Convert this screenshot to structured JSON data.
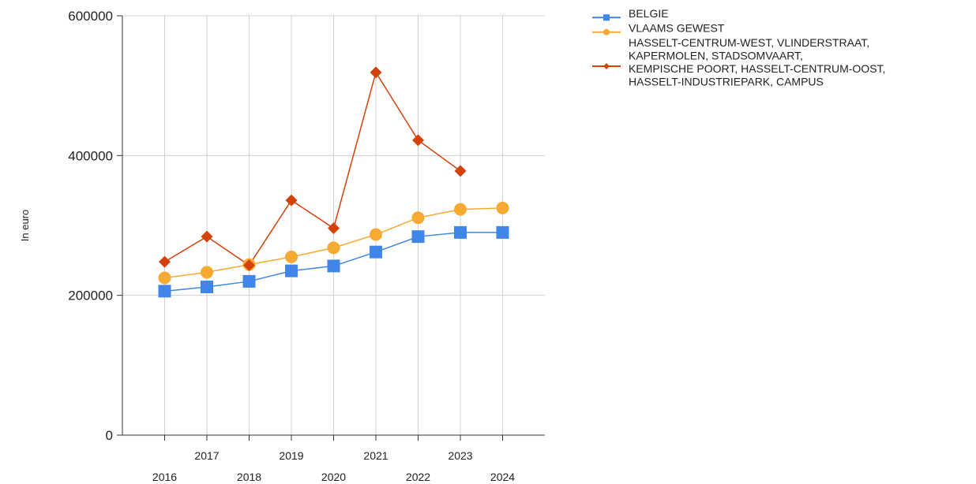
{
  "chart_data": {
    "type": "line",
    "title": "",
    "xlabel": "",
    "ylabel": "In euro",
    "ylim": [
      0,
      600000
    ],
    "yticks": [
      0,
      200000,
      400000,
      600000
    ],
    "categories": [
      "2016",
      "2017",
      "2018",
      "2019",
      "2020",
      "2021",
      "2022",
      "2023",
      "2024"
    ],
    "grid": true,
    "legend_position": "top-right",
    "series": [
      {
        "name": "BELGIE",
        "color": "#3f86e8",
        "marker": "square",
        "values": [
          206000,
          212000,
          220000,
          235000,
          242000,
          262000,
          284000,
          290000,
          290000
        ]
      },
      {
        "name": "VLAAMS GEWEST",
        "color": "#f7aa32",
        "marker": "circle",
        "values": [
          225000,
          233000,
          244000,
          255000,
          268000,
          287000,
          311000,
          323000,
          325000
        ]
      },
      {
        "name": "HASSELT-CENTRUM-WEST, VLINDERSTRAAT, KAPERMOLEN, STADSOMVAART, KEMPISCHE POORT, HASSELT-CENTRUM-OOST, HASSELT-INDUSTRIEPARK, CAMPUS",
        "legend_lines": [
          "HASSELT-CENTRUM-WEST, VLINDERSTRAAT,",
          "KAPERMOLEN, STADSOMVAART,",
          "KEMPISCHE POORT, HASSELT-CENTRUM-OOST,",
          "HASSELT-INDUSTRIEPARK, CAMPUS"
        ],
        "color": "#d4420c",
        "marker": "diamond",
        "values": [
          248000,
          284000,
          243000,
          336000,
          296000,
          519000,
          422000,
          378000,
          null
        ]
      }
    ]
  }
}
